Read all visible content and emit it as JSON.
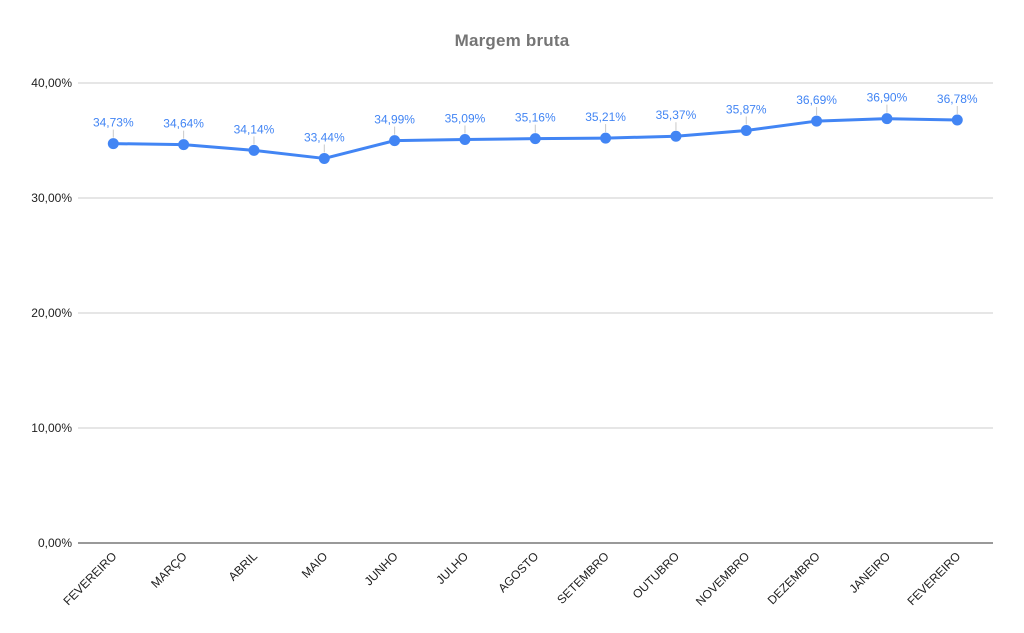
{
  "chart_data": {
    "type": "line",
    "title": "Margem bruta",
    "categories": [
      "FEVEREIRO",
      "MARÇO",
      "ABRIL",
      "MAIO",
      "JUNHO",
      "JULHO",
      "AGOSTO",
      "SETEMBRO",
      "OUTUBRO",
      "NOVEMBRO",
      "DEZEMBRO",
      "JANEIRO",
      "FEVEREIRO"
    ],
    "series": [
      {
        "name": "Margem bruta",
        "values": [
          34.73,
          34.64,
          34.14,
          33.44,
          34.99,
          35.09,
          35.16,
          35.21,
          35.37,
          35.87,
          36.69,
          36.9,
          36.78
        ],
        "point_labels": [
          "34,73%",
          "34,64%",
          "34,14%",
          "33,44%",
          "34,99%",
          "35,09%",
          "35,16%",
          "35,21%",
          "35,37%",
          "35,87%",
          "36,69%",
          "36,90%",
          "36,78%"
        ]
      }
    ],
    "y_ticks": [
      {
        "value": 0,
        "label": "0,00%"
      },
      {
        "value": 10,
        "label": "10,00%"
      },
      {
        "value": 20,
        "label": "20,00%"
      },
      {
        "value": 30,
        "label": "30,00%"
      },
      {
        "value": 40,
        "label": "40,00%"
      }
    ],
    "ylim": [
      0,
      40
    ],
    "grid": true,
    "legend": "none",
    "x_label_rotation": -45,
    "colors": {
      "line": "#4285f4",
      "point": "#4285f4",
      "data_label": "#4285f4",
      "grid": "#cccccc",
      "axis_line": "#333333",
      "axis_text": "#212121",
      "title": "#757575",
      "leader": "#c9c9c9",
      "background": "#ffffff"
    }
  }
}
